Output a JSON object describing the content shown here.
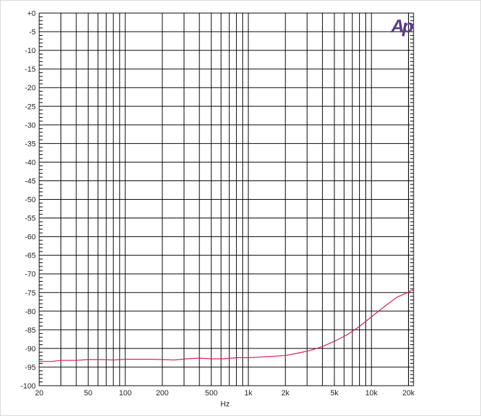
{
  "logo": {
    "text": "Ap",
    "color": "#5a3d8c"
  },
  "chart_data": {
    "type": "line",
    "title": "",
    "xlabel": "Hz",
    "ylabel": "",
    "x_scale": "log",
    "xlim": [
      20,
      22000
    ],
    "ylim": [
      -100,
      0
    ],
    "grid": true,
    "line_color": "#d6185a",
    "x_tick_labels": [
      {
        "value": 20,
        "label": "20"
      },
      {
        "value": 50,
        "label": "50"
      },
      {
        "value": 100,
        "label": "100"
      },
      {
        "value": 200,
        "label": "200"
      },
      {
        "value": 500,
        "label": "500"
      },
      {
        "value": 1000,
        "label": "1k"
      },
      {
        "value": 2000,
        "label": "2k"
      },
      {
        "value": 5000,
        "label": "5k"
      },
      {
        "value": 10000,
        "label": "10k"
      },
      {
        "value": 20000,
        "label": "20k"
      }
    ],
    "y_tick_labels": [
      {
        "value": 0,
        "label": "+0"
      },
      {
        "value": -5,
        "label": "-5"
      },
      {
        "value": -10,
        "label": "-10"
      },
      {
        "value": -15,
        "label": "-15"
      },
      {
        "value": -20,
        "label": "-20"
      },
      {
        "value": -25,
        "label": "-25"
      },
      {
        "value": -30,
        "label": "-30"
      },
      {
        "value": -35,
        "label": "-35"
      },
      {
        "value": -40,
        "label": "-40"
      },
      {
        "value": -45,
        "label": "-45"
      },
      {
        "value": -50,
        "label": "-50"
      },
      {
        "value": -55,
        "label": "-55"
      },
      {
        "value": -60,
        "label": "-60"
      },
      {
        "value": -65,
        "label": "-65"
      },
      {
        "value": -70,
        "label": "-70"
      },
      {
        "value": -75,
        "label": "-75"
      },
      {
        "value": -80,
        "label": "-80"
      },
      {
        "value": -85,
        "label": "-85"
      },
      {
        "value": -90,
        "label": "-90"
      },
      {
        "value": -95,
        "label": "-95"
      },
      {
        "value": -100,
        "label": "-100"
      }
    ],
    "series": [
      {
        "x": [
          20,
          25,
          30,
          40,
          50,
          65,
          80,
          100,
          125,
          160,
          200,
          250,
          315,
          400,
          500,
          630,
          800,
          1000,
          1250,
          1600,
          2000,
          2500,
          3150,
          4000,
          5000,
          6300,
          8000,
          10000,
          12500,
          16000,
          20000,
          22000
        ],
        "y": [
          -93.5,
          -93.5,
          -93.2,
          -93.2,
          -93.0,
          -93.0,
          -93.1,
          -92.9,
          -92.9,
          -92.9,
          -93.0,
          -93.1,
          -92.8,
          -92.6,
          -92.8,
          -92.8,
          -92.5,
          -92.5,
          -92.3,
          -92.1,
          -91.9,
          -91.3,
          -90.6,
          -89.5,
          -88.1,
          -86.4,
          -84.1,
          -81.5,
          -79.0,
          -76.3,
          -74.9,
          -74.2
        ]
      }
    ]
  }
}
